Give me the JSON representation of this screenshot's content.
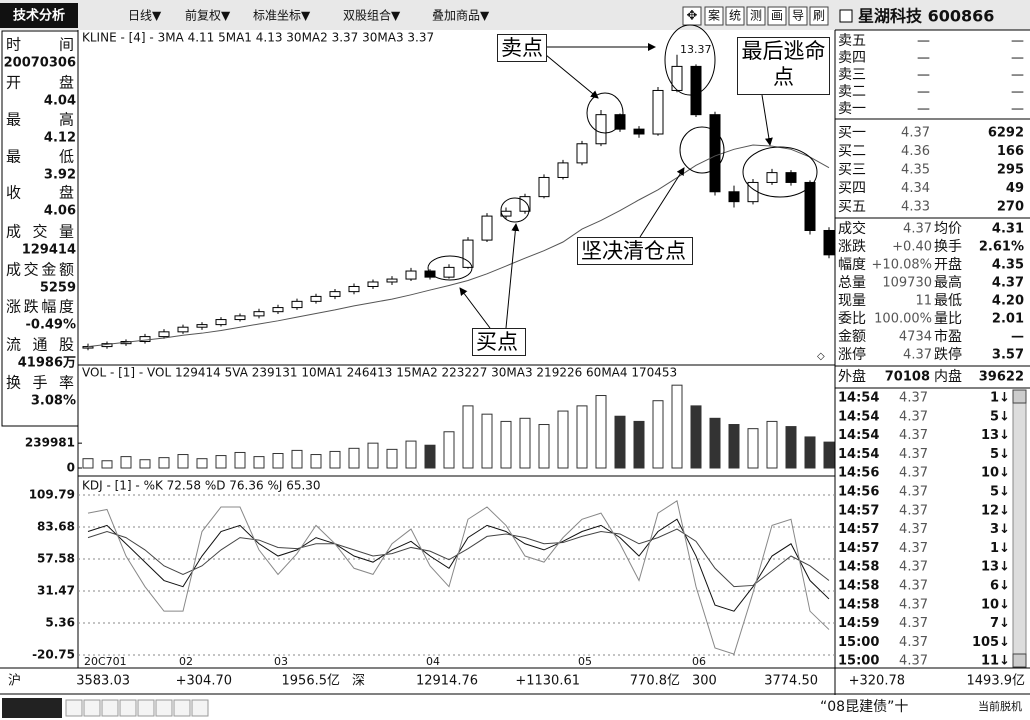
{
  "toolbar": {
    "title": "技术分析",
    "menus": [
      "日线▼",
      "前复权▼",
      "标准坐标▼",
      "双股组合▼",
      "叠加商品▼"
    ],
    "icons": [
      "案",
      "统",
      "测",
      "画",
      "导",
      "刷"
    ]
  },
  "info_panel": [
    {
      "label": "时间",
      "value": "20070306"
    },
    {
      "label": "开盘",
      "value": 4.04
    },
    {
      "label": "最高",
      "value": 4.12
    },
    {
      "label": "最低",
      "value": 3.92
    },
    {
      "label": "收盘",
      "value": 4.06
    },
    {
      "label": "成交量",
      "value": 129414
    },
    {
      "label": "成交金额",
      "value": 5259
    },
    {
      "label": "涨跌幅度",
      "value": "-0.49%"
    },
    {
      "label": "流通股",
      "value": "41986万"
    },
    {
      "label": "换手率",
      "value": "3.08%"
    }
  ],
  "chart_data": [
    {
      "type": "candlestick",
      "legend": "KLINE - [4] - 3MA 4.11 5MA1 4.13 30MA2 3.37 30MA3 3.37",
      "log": true,
      "ylim": [
        2.05,
        14.2
      ],
      "color": "#000000",
      "open": [
        2.18,
        2.2,
        2.24,
        2.27,
        2.34,
        2.41,
        2.48,
        2.52,
        2.6,
        2.66,
        2.73,
        2.8,
        2.91,
        3.0,
        3.09,
        3.19,
        3.28,
        3.34,
        3.51,
        3.38,
        3.59,
        4.25,
        4.93,
        5.08,
        5.56,
        6.26,
        6.85,
        7.71,
        9.23,
        8.44,
        8.19,
        10.72,
        12.44,
        9.23,
        5.73,
        5.39,
        6.07,
        6.45,
        6.07,
        4.51
      ],
      "high": [
        2.24,
        2.27,
        2.3,
        2.38,
        2.45,
        2.52,
        2.56,
        2.64,
        2.7,
        2.78,
        2.85,
        2.96,
        3.05,
        3.14,
        3.25,
        3.33,
        3.4,
        3.58,
        3.55,
        3.66,
        4.33,
        5.02,
        5.2,
        5.66,
        6.38,
        6.98,
        7.85,
        9.5,
        9.3,
        8.6,
        10.95,
        13.37,
        12.6,
        9.4,
        5.95,
        6.2,
        6.6,
        6.55,
        6.15,
        4.6
      ],
      "low": [
        2.15,
        2.17,
        2.21,
        2.24,
        2.31,
        2.38,
        2.44,
        2.49,
        2.57,
        2.62,
        2.69,
        2.76,
        2.87,
        2.95,
        3.04,
        3.14,
        3.22,
        3.3,
        3.33,
        3.35,
        3.56,
        4.2,
        4.85,
        5.0,
        5.5,
        6.18,
        6.75,
        7.6,
        8.3,
        8.0,
        8.1,
        10.6,
        9.1,
        5.6,
        5.2,
        5.3,
        5.98,
        5.95,
        4.4,
        3.8
      ],
      "close": [
        2.2,
        2.24,
        2.27,
        2.34,
        2.41,
        2.48,
        2.52,
        2.6,
        2.66,
        2.73,
        2.8,
        2.91,
        3.0,
        3.09,
        3.19,
        3.28,
        3.34,
        3.51,
        3.38,
        3.59,
        4.25,
        4.93,
        5.08,
        5.56,
        6.26,
        6.85,
        7.71,
        9.23,
        8.44,
        8.19,
        10.72,
        12.44,
        9.23,
        5.73,
        5.39,
        6.07,
        6.45,
        6.07,
        4.51,
        3.88
      ],
      "series": [
        {
          "color": "#555555",
          "values": [
            2.2,
            2.23,
            2.26,
            2.29,
            2.32,
            2.36,
            2.39,
            2.43,
            2.48,
            2.53,
            2.58,
            2.64,
            2.7,
            2.76,
            2.83,
            2.89,
            2.95,
            3.03,
            3.12,
            3.21,
            3.31,
            3.45,
            3.62,
            3.8,
            3.98,
            4.2,
            4.55,
            4.8,
            5.1,
            5.45,
            5.8,
            6.25,
            6.75,
            7.15,
            7.45,
            7.65,
            7.6,
            7.45,
            7.1,
            6.65
          ]
        }
      ],
      "annotations": [
        "卖点",
        "最后逃命点",
        "坚决清仓点",
        "买点"
      ]
    },
    {
      "type": "bar",
      "legend": "VOL - [1] - VOL 129414 5VA 239131 10MA1 246413 15MA2 223227 30MA3 219226 60MA4 170453",
      "color": "#333333",
      "ylim": [
        0,
        850000
      ],
      "yticks": [
        0,
        239981
      ],
      "values": [
        90000,
        70000,
        110000,
        80000,
        100000,
        130000,
        90000,
        120000,
        150000,
        110000,
        140000,
        170000,
        130000,
        160000,
        190000,
        240000,
        180000,
        260000,
        220000,
        350000,
        600000,
        520000,
        450000,
        480000,
        420000,
        550000,
        600000,
        700000,
        500000,
        450000,
        650000,
        800000,
        600000,
        480000,
        420000,
        380000,
        450000,
        400000,
        300000,
        250000
      ]
    },
    {
      "type": "line",
      "legend": "KDJ - [1] - %K 72.58 %D 76.36 %J 65.30",
      "ylim": [
        -20.75,
        109.79
      ],
      "yticks": [
        109.79,
        83.68,
        57.58,
        31.47,
        5.36,
        -20.75
      ],
      "grid": true,
      "categories": [
        "20C701",
        null,
        null,
        null,
        null,
        "02",
        null,
        null,
        null,
        null,
        "03",
        null,
        null,
        null,
        null,
        null,
        null,
        null,
        "04",
        null,
        null,
        null,
        null,
        null,
        null,
        null,
        "05",
        null,
        null,
        null,
        null,
        null,
        "06",
        null,
        null,
        null,
        null,
        null,
        null,
        null
      ],
      "series": [
        {
          "color": "#111111",
          "values": [
            80,
            85,
            70,
            55,
            40,
            35,
            60,
            80,
            85,
            70,
            60,
            65,
            75,
            70,
            60,
            55,
            65,
            72,
            60,
            50,
            75,
            85,
            80,
            70,
            65,
            72,
            80,
            85,
            75,
            60,
            80,
            90,
            60,
            20,
            15,
            35,
            60,
            70,
            40,
            25
          ]
        },
        {
          "color": "#444444",
          "values": [
            75,
            80,
            75,
            65,
            52,
            45,
            52,
            65,
            75,
            73,
            67,
            66,
            70,
            70,
            65,
            60,
            62,
            67,
            64,
            57,
            66,
            76,
            78,
            75,
            70,
            71,
            76,
            80,
            78,
            70,
            75,
            82,
            72,
            50,
            35,
            36,
            48,
            60,
            52,
            40
          ]
        },
        {
          "color": "#888888",
          "values": [
            95,
            98,
            60,
            35,
            15,
            15,
            80,
            100,
            100,
            65,
            45,
            62,
            85,
            70,
            50,
            45,
            70,
            82,
            52,
            35,
            90,
            100,
            85,
            60,
            55,
            75,
            90,
            95,
            70,
            40,
            95,
            105,
            35,
            -15,
            -20,
            30,
            85,
            90,
            15,
            0
          ]
        }
      ]
    }
  ],
  "quote": {
    "stock": "星湖科技 600866",
    "sell": [
      {
        "label": "卖五",
        "price": "—",
        "volume": "—"
      },
      {
        "label": "卖四",
        "price": "—",
        "volume": "—"
      },
      {
        "label": "卖三",
        "price": "—",
        "volume": "—"
      },
      {
        "label": "卖二",
        "price": "—",
        "volume": "—"
      },
      {
        "label": "卖一",
        "price": "—",
        "volume": "—"
      }
    ],
    "buy": [
      {
        "label": "买一",
        "price": 4.37,
        "volume": 6292
      },
      {
        "label": "买二",
        "price": 4.36,
        "volume": 166
      },
      {
        "label": "买三",
        "price": 4.35,
        "volume": 295
      },
      {
        "label": "买四",
        "price": 4.34,
        "volume": 49
      },
      {
        "label": "买五",
        "price": 4.33,
        "volume": 270
      }
    ],
    "stats": [
      [
        "成交",
        4.37,
        "均价",
        4.31
      ],
      [
        "涨跌",
        "+0.40",
        "换手",
        "2.61%"
      ],
      [
        "幅度",
        "+10.08%",
        "开盘",
        4.35
      ],
      [
        "总量",
        109730,
        "最高",
        4.37
      ],
      [
        "现量",
        11,
        "最低",
        "4.20"
      ],
      [
        "委比",
        "100.00%",
        "量比",
        2.01
      ],
      [
        "金额",
        4734,
        "市盈",
        "—"
      ],
      [
        "涨停",
        4.37,
        "跌停",
        3.57
      ]
    ],
    "outer": [
      "外盘",
      70108,
      "内盘",
      39622
    ]
  },
  "ticks": [
    [
      "14:54",
      "4.37",
      "1↓"
    ],
    [
      "14:54",
      "4.37",
      "5↓"
    ],
    [
      "14:54",
      "4.37",
      "13↓"
    ],
    [
      "14:54",
      "4.37",
      "5↓"
    ],
    [
      "14:56",
      "4.37",
      "10↓"
    ],
    [
      "14:56",
      "4.37",
      "5↓"
    ],
    [
      "14:57",
      "4.37",
      "12↓"
    ],
    [
      "14:57",
      "4.37",
      "3↓"
    ],
    [
      "14:57",
      "4.37",
      "1↓"
    ],
    [
      "14:58",
      "4.37",
      "13↓"
    ],
    [
      "14:58",
      "4.37",
      "6↓"
    ],
    [
      "14:58",
      "4.37",
      "10↓"
    ],
    [
      "14:59",
      "4.37",
      "7↓"
    ],
    [
      "15:00",
      "4.37",
      "105↓"
    ],
    [
      "15:00",
      "4.37",
      "11↓"
    ]
  ],
  "status": {
    "items": [
      "沪",
      "3583.03",
      "+304.70",
      "1956.5亿",
      "深",
      "12914.76",
      "+1130.61",
      "770.8亿",
      "300",
      "3774.50",
      "+320.78",
      "1493.9亿"
    ],
    "notice": "“08昆建债”十",
    "mode": "当前脱机"
  }
}
